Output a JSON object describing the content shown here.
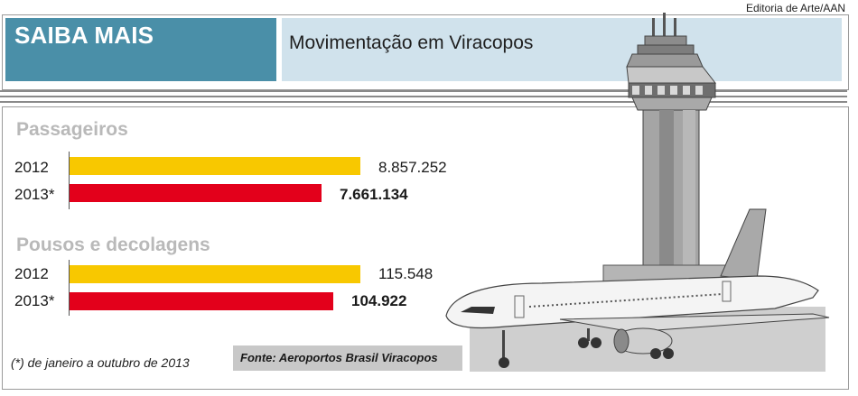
{
  "credit": "Editoria de Arte/AAN",
  "header": {
    "tag": "SAIBA MAIS",
    "title": "Movimentação em Viracopos"
  },
  "colors": {
    "tag_bg": "#4a8fa8",
    "title_bg": "#d0e2ec",
    "bar_2012": "#f8c800",
    "bar_2013": "#e3001b",
    "section_title": "#b9b9b9"
  },
  "chart_data": [
    {
      "type": "bar",
      "orientation": "horizontal",
      "title": "Passageiros",
      "categories": [
        "2012",
        "2013*"
      ],
      "values": [
        8857252,
        7661134
      ],
      "value_labels": [
        "8.857.252",
        "7.661.134"
      ],
      "xlim": [
        0,
        8857252
      ]
    },
    {
      "type": "bar",
      "orientation": "horizontal",
      "title": "Pousos e decolagens",
      "categories": [
        "2012",
        "2013*"
      ],
      "values": [
        115548,
        104922
      ],
      "value_labels": [
        "115.548",
        "104.922"
      ],
      "xlim": [
        0,
        115548
      ]
    }
  ],
  "footnote": "(*) de janeiro a outubro de 2013",
  "source": "Fonte: Aeroportos Brasil Viracopos",
  "illustration": {
    "icons": [
      "control-tower-icon",
      "airplane-icon"
    ]
  }
}
